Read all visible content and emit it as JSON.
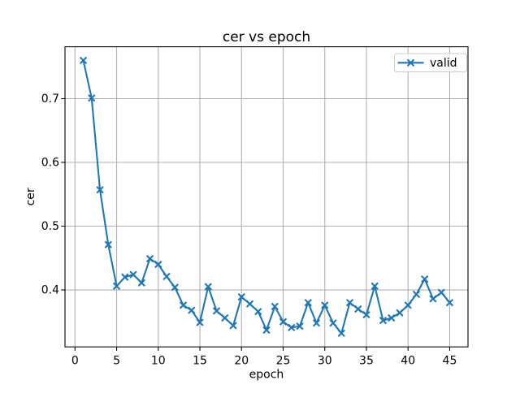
{
  "figure": {
    "background": "#ffffff"
  },
  "chart_data": {
    "type": "line",
    "title": "cer vs epoch",
    "xlabel": "epoch",
    "ylabel": "cer",
    "x": [
      1,
      2,
      3,
      4,
      5,
      6,
      7,
      8,
      9,
      10,
      11,
      12,
      13,
      14,
      15,
      16,
      17,
      18,
      19,
      20,
      21,
      22,
      23,
      24,
      25,
      26,
      27,
      28,
      29,
      30,
      31,
      32,
      33,
      34,
      35,
      36,
      37,
      38,
      39,
      40,
      41,
      42,
      43,
      44,
      45
    ],
    "series": [
      {
        "name": "valid",
        "color": "#1f77b4",
        "marker": "x",
        "values": [
          0.76,
          0.701,
          0.557,
          0.471,
          0.406,
          0.42,
          0.424,
          0.411,
          0.449,
          0.44,
          0.421,
          0.404,
          0.376,
          0.368,
          0.349,
          0.405,
          0.367,
          0.356,
          0.344,
          0.389,
          0.378,
          0.366,
          0.337,
          0.374,
          0.35,
          0.341,
          0.343,
          0.38,
          0.348,
          0.376,
          0.348,
          0.332,
          0.38,
          0.37,
          0.361,
          0.406,
          0.352,
          0.356,
          0.364,
          0.376,
          0.393,
          0.417,
          0.386,
          0.396,
          0.38
        ]
      }
    ],
    "xlim": [
      -1.2,
      47.2
    ],
    "ylim": [
      0.3106,
      0.7814
    ],
    "xticks": {
      "values": [
        0,
        5,
        10,
        15,
        20,
        25,
        30,
        35,
        40,
        45
      ],
      "labels": [
        "0",
        "5",
        "10",
        "15",
        "20",
        "25",
        "30",
        "35",
        "40",
        "45"
      ]
    },
    "yticks": {
      "values": [
        0.4,
        0.5,
        0.6,
        0.7
      ],
      "labels": [
        "0.4",
        "0.5",
        "0.6",
        "0.7"
      ]
    },
    "grid": true,
    "grid_color": "#b0b0b0",
    "spine_color": "#000000",
    "tick_color": "#000000",
    "legend": {
      "label": "valid",
      "position": "upper right",
      "border_color": "#cccccc",
      "background": "#ffffff"
    }
  }
}
